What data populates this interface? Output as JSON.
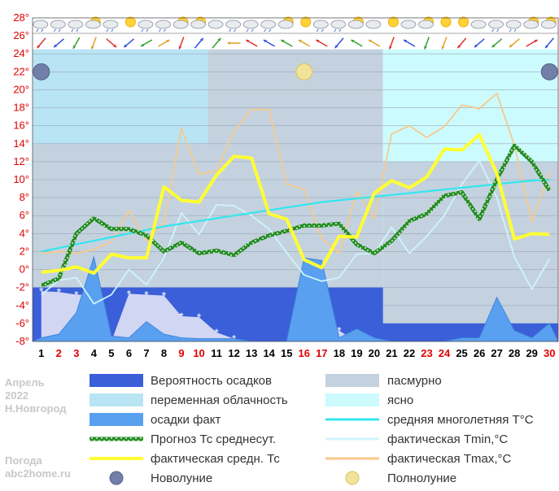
{
  "caption": {
    "month": "Апрель",
    "year": "2022",
    "city": "Н.Новгород",
    "site_title": "Погода",
    "site": "abc2home.ru"
  },
  "colors": {
    "precip_prob": "#3a5fd9",
    "partly_cloudy": "#b8e4f4",
    "overcast": "#c4d2df",
    "clear": "#ccfbfd",
    "precip_fact": "#5aa0f0",
    "forecast_mean": "#1f7a1f",
    "fact_mean": "#ffff33",
    "climate_mean": "#33e6ef",
    "tmin": "#cff4fb",
    "tmax": "#f7c98b",
    "weekday": "#000000",
    "weekend": "#e00000"
  },
  "legend": {
    "precip_prob": "Вероятность осадков",
    "partly_cloudy": "переменная облачность",
    "precip_fact": "осадки факт",
    "forecast_mean": "Прогноз Тс среднесут.",
    "fact_mean": "фактическая средн. Тс",
    "new_moon": "Новолуние",
    "overcast": "пасмурно",
    "clear": "ясно",
    "climate_mean": "средняя многолетняя Т°С",
    "tmin": "фактическая Tmin,°C",
    "tmax": "фактическая Tmax,°C",
    "full_moon": "Полнолуние"
  },
  "chart_data": {
    "type": "line",
    "y_ticks": [
      "28°",
      "26°",
      "24°",
      "22°",
      "20°",
      "18°",
      "16°",
      "14°",
      "12°",
      "10°",
      "8°",
      "6°",
      "4°",
      "2°",
      "0°",
      "-2°",
      "-4°",
      "-6°",
      "-8°"
    ],
    "ylim": [
      -8,
      28
    ],
    "x": [
      1,
      2,
      3,
      4,
      5,
      6,
      7,
      8,
      9,
      10,
      11,
      12,
      13,
      14,
      15,
      16,
      17,
      18,
      19,
      20,
      21,
      22,
      23,
      24,
      25,
      26,
      27,
      28,
      29,
      30
    ],
    "weekend_days": [
      2,
      3,
      9,
      10,
      16,
      17,
      23,
      24,
      30
    ],
    "cloud_cover": [
      {
        "from": 0.5,
        "to": 10.5,
        "type": "partly_cloudy"
      },
      {
        "from": 10.5,
        "to": 20.5,
        "type": "overcast"
      },
      {
        "from": 20.5,
        "to": 30.5,
        "type": "clear"
      }
    ],
    "series": [
      {
        "key": "forecast_mean",
        "values": [
          -1.8,
          -1.0,
          4.0,
          5.7,
          4.5,
          4.5,
          3.8,
          2.0,
          3.0,
          1.8,
          2.1,
          1.6,
          3.0,
          3.8,
          4.3,
          4.9,
          4.9,
          5.1,
          2.8,
          1.8,
          3.2,
          5.4,
          6.2,
          8.2,
          8.6,
          5.6,
          10.0,
          13.8,
          12.0,
          8.8
        ]
      },
      {
        "key": "fact_mean",
        "values": [
          -0.3,
          -0.1,
          0.3,
          -0.4,
          1.7,
          1.3,
          1.3,
          9.2,
          7.7,
          7.5,
          10.5,
          12.6,
          12.4,
          6.2,
          5.6,
          1.1,
          0.2,
          3.7,
          3.6,
          8.5,
          9.9,
          9.1,
          10.3,
          13.4,
          13.3,
          15.0,
          10.7,
          3.4,
          4.0,
          3.9
        ]
      },
      {
        "key": "climate_mean",
        "values": [
          2.0,
          2.4,
          2.8,
          3.2,
          3.6,
          4.0,
          4.4,
          4.8,
          5.1,
          5.4,
          5.7,
          6.0,
          6.3,
          6.6,
          6.9,
          7.2,
          7.5,
          7.7,
          7.9,
          8.1,
          8.3,
          8.5,
          8.7,
          8.9,
          9.1,
          9.3,
          9.5,
          9.7,
          9.9,
          10.0
        ]
      },
      {
        "key": "tmin",
        "values": [
          -2.8,
          -1.2,
          -0.9,
          -3.8,
          -2.8,
          0.0,
          -1.7,
          1.3,
          6.3,
          3.9,
          7.2,
          7.1,
          6.0,
          4.5,
          1.9,
          -0.6,
          -1.3,
          -0.9,
          1.7,
          1.8,
          4.7,
          1.8,
          3.7,
          6.0,
          9.5,
          12.1,
          8.0,
          1.4,
          -2.2,
          1.2
        ]
      },
      {
        "key": "tmax",
        "values": [
          1.8,
          2.0,
          1.8,
          2.2,
          3.1,
          6.6,
          3.2,
          5.2,
          15.7,
          10.6,
          11.0,
          15.4,
          17.8,
          17.8,
          9.5,
          8.9,
          3.5,
          1.8,
          8.7,
          5.7,
          15.1,
          16.0,
          14.7,
          15.9,
          18.3,
          17.9,
          19.6,
          13.8,
          5.3,
          10.7
        ]
      }
    ],
    "precip_prob": [
      -2,
      -2,
      -2,
      -2,
      -2,
      -2,
      -2,
      -2,
      -2,
      -2,
      -2,
      -2,
      -2,
      -2,
      -2,
      -2,
      -2,
      -2,
      -2,
      -2,
      -6,
      -6,
      -6,
      -6,
      -6,
      -6,
      -6,
      -6,
      -6,
      -6
    ],
    "precip_fact": [
      -7.6,
      -7.2,
      -4.8,
      1.4,
      -7.4,
      -7.6,
      -5.8,
      -7.2,
      -7.6,
      -7.7,
      -7.7,
      -7.7,
      -8,
      -8,
      -8,
      1.3,
      1.0,
      -7.6,
      -6.6,
      -7.6,
      -8,
      -8,
      -8,
      -8,
      -7.6,
      -7.6,
      -3.1,
      -6.8,
      -7.6,
      -6.0
    ],
    "snow_fact": [
      -2.4,
      -2.5,
      -2.8,
      -2.8,
      -8,
      -2.7,
      -2.8,
      -2.9,
      -5.2,
      -5.3,
      -7.0,
      -7.7,
      -8,
      -8,
      -8,
      -8,
      -6.6,
      -6.8,
      -8,
      -8,
      -8,
      -8,
      -8,
      -8,
      -8,
      -8,
      -8,
      -8,
      -8,
      -8
    ],
    "new_moon_days": [
      1,
      30
    ],
    "full_moon_days": [
      16
    ]
  },
  "top_strip": {
    "weather_icons": [
      "rain",
      "rain",
      "rain",
      "sun-cloud",
      "rain",
      "sun",
      "rain",
      "rain",
      "sun-cloud",
      "sun-cloud",
      "cloud",
      "rain",
      "rain",
      "rain",
      "sun-cloud",
      "sun",
      "rain",
      "rain",
      "sun-cloud",
      "cloud",
      "sun",
      "cloud",
      "sun-cloud",
      "sun",
      "sun",
      "cloud",
      "rain",
      "rain",
      "sun-cloud",
      "sun-cloud"
    ],
    "wind_dirs": [
      220,
      230,
      210,
      200,
      130,
      230,
      240,
      60,
      200,
      40,
      40,
      270,
      300,
      300,
      300,
      300,
      300,
      220,
      300,
      300,
      200,
      300,
      200,
      200,
      220,
      230,
      230,
      230,
      60,
      220
    ]
  }
}
